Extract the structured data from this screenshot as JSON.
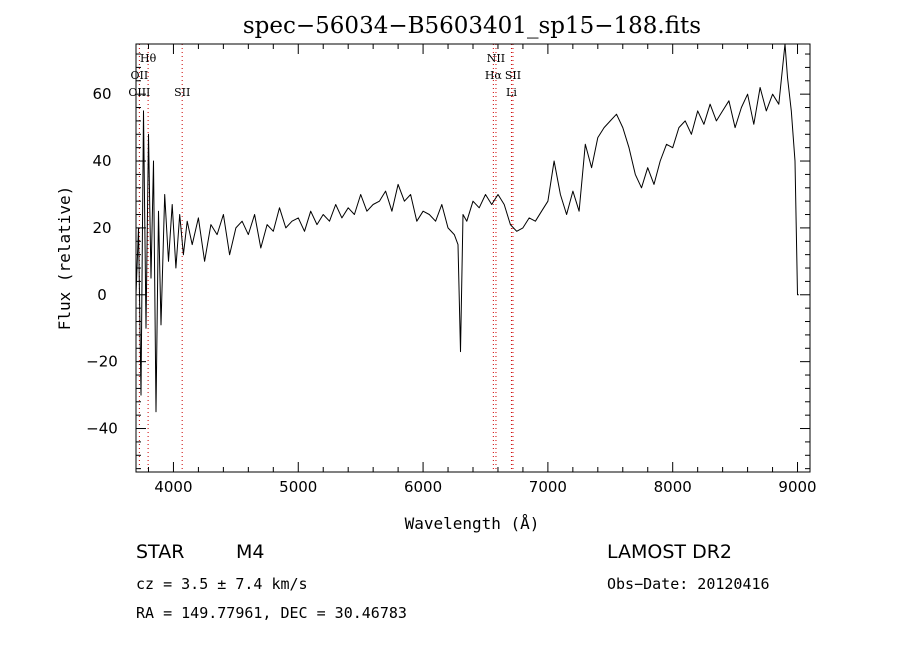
{
  "chart_data": {
    "type": "line",
    "title": "spec−56034−B5603401_sp15−188.fits",
    "xlabel": "Wavelength (Å)",
    "ylabel": "Flux (relative)",
    "xlim": [
      3700,
      9100
    ],
    "ylim": [
      -53,
      75
    ],
    "xticks": [
      4000,
      5000,
      6000,
      7000,
      8000,
      9000
    ],
    "yticks": [
      -40,
      -20,
      0,
      20,
      40,
      60
    ],
    "ytick_labels": [
      "−40",
      "−20",
      "0",
      "20",
      "40",
      "60"
    ],
    "series": [
      {
        "x": [
          3700,
          3720,
          3740,
          3760,
          3780,
          3800,
          3820,
          3840,
          3860,
          3880,
          3900,
          3930,
          3960,
          3990,
          4020,
          4050,
          4080,
          4110,
          4150,
          4200,
          4250,
          4300,
          4350,
          4400,
          4450,
          4500,
          4550,
          4600,
          4650,
          4700,
          4750,
          4800,
          4850,
          4900,
          4950,
          5000,
          5050,
          5100,
          5150,
          5200,
          5250,
          5300,
          5350,
          5400,
          5450,
          5500,
          5550,
          5600,
          5650,
          5700,
          5750,
          5800,
          5850,
          5900,
          5950,
          6000,
          6050,
          6100,
          6150,
          6200,
          6250,
          6280,
          6300,
          6320,
          6350,
          6400,
          6450,
          6500,
          6550,
          6600,
          6650,
          6700,
          6750,
          6800,
          6850,
          6900,
          6950,
          7000,
          7050,
          7100,
          7150,
          7200,
          7250,
          7300,
          7350,
          7400,
          7450,
          7500,
          7550,
          7600,
          7650,
          7700,
          7750,
          7800,
          7850,
          7900,
          7950,
          8000,
          8050,
          8100,
          8150,
          8200,
          8250,
          8300,
          8350,
          8400,
          8450,
          8500,
          8550,
          8600,
          8650,
          8700,
          8750,
          8800,
          8850,
          8900,
          8920,
          8950,
          8980,
          9000,
          9010
        ],
        "y": [
          0,
          20,
          -30,
          55,
          -10,
          48,
          5,
          40,
          -35,
          25,
          -9,
          30,
          10,
          27,
          8,
          24,
          12,
          22,
          15,
          23,
          10,
          21,
          18,
          24,
          12,
          20,
          22,
          18,
          24,
          14,
          21,
          19,
          26,
          20,
          22,
          23,
          19,
          25,
          21,
          24,
          22,
          27,
          23,
          26,
          24,
          30,
          25,
          27,
          28,
          31,
          25,
          33,
          28,
          30,
          22,
          25,
          24,
          22,
          27,
          20,
          18,
          15,
          -17,
          24,
          22,
          28,
          26,
          30,
          27,
          30,
          27,
          21,
          19,
          20,
          23,
          22,
          25,
          28,
          40,
          30,
          24,
          31,
          25,
          45,
          38,
          47,
          50,
          52,
          54,
          50,
          44,
          36,
          32,
          38,
          33,
          40,
          45,
          44,
          50,
          52,
          48,
          55,
          51,
          57,
          52,
          55,
          58,
          50,
          56,
          60,
          51,
          62,
          55,
          60,
          57,
          75,
          65,
          55,
          40,
          0,
          0
        ]
      }
    ],
    "line_markers": [
      {
        "label": "Hθ",
        "x": 3797,
        "row": 1
      },
      {
        "label": "OII",
        "x": 3727,
        "row": 2
      },
      {
        "label": "OIII",
        "x": 3727,
        "row": 3
      },
      {
        "label": "SII",
        "x": 4070,
        "row": 3
      },
      {
        "label": "NII",
        "x": 6584,
        "row": 1
      },
      {
        "label": "Hα",
        "x": 6563,
        "row": 2
      },
      {
        "label": "SII",
        "x": 6720,
        "row": 2
      },
      {
        "label": "Li",
        "x": 6708,
        "row": 3
      }
    ]
  },
  "info": {
    "object_class": "STAR",
    "subclass": "M4",
    "survey": "LAMOST DR2",
    "cz": "cz = 3.5 ± 7.4 km/s",
    "obs_date": "Obs−Date: 20120416",
    "radec": "RA = 149.77961, DEC =  30.46783"
  }
}
